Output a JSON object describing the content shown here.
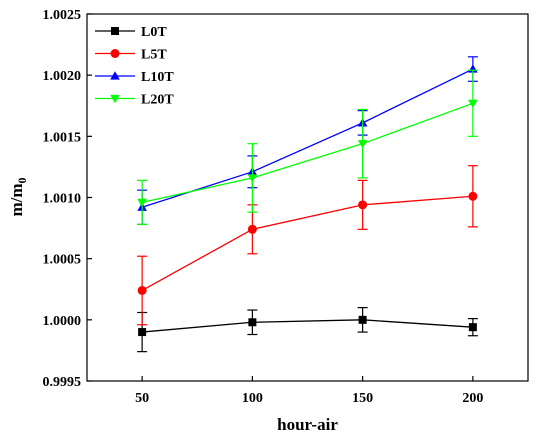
{
  "chart_data": {
    "type": "line",
    "title": "",
    "xlabel": "hour-air",
    "ylabel": {
      "main": "m/m",
      "sub": "0"
    },
    "x": [
      50,
      100,
      150,
      200
    ],
    "xlim": [
      25,
      225
    ],
    "ylim": [
      0.9995,
      1.0025
    ],
    "xticks": [
      "50",
      "100",
      "150",
      "200"
    ],
    "yticks": [
      "0.9995",
      "1.0000",
      "1.0005",
      "1.0010",
      "1.0015",
      "1.0020",
      "1.0025"
    ],
    "legend": {
      "position": "top-left"
    },
    "grid": false,
    "series": [
      {
        "name": "L0T",
        "color": "#000000",
        "marker": "square",
        "values": [
          0.9999,
          0.99998,
          1.0,
          0.99994
        ],
        "errors": [
          0.00016,
          0.0001,
          0.0001,
          7e-05
        ]
      },
      {
        "name": "L5T",
        "color": "#ff0000",
        "marker": "circle",
        "values": [
          1.00024,
          1.00074,
          1.00094,
          1.00101
        ],
        "errors": [
          0.00028,
          0.0002,
          0.0002,
          0.00025
        ]
      },
      {
        "name": "L10T",
        "color": "#0000ff",
        "marker": "triangle-up",
        "values": [
          1.00092,
          1.00121,
          1.00161,
          1.00205
        ],
        "errors": [
          0.00014,
          0.00013,
          0.0001,
          0.0001
        ]
      },
      {
        "name": "L20T",
        "color": "#00ff00",
        "marker": "triangle-down",
        "values": [
          1.00096,
          1.00116,
          1.00144,
          1.00177
        ],
        "errors": [
          0.00018,
          0.00028,
          0.00028,
          0.00027
        ]
      }
    ]
  }
}
